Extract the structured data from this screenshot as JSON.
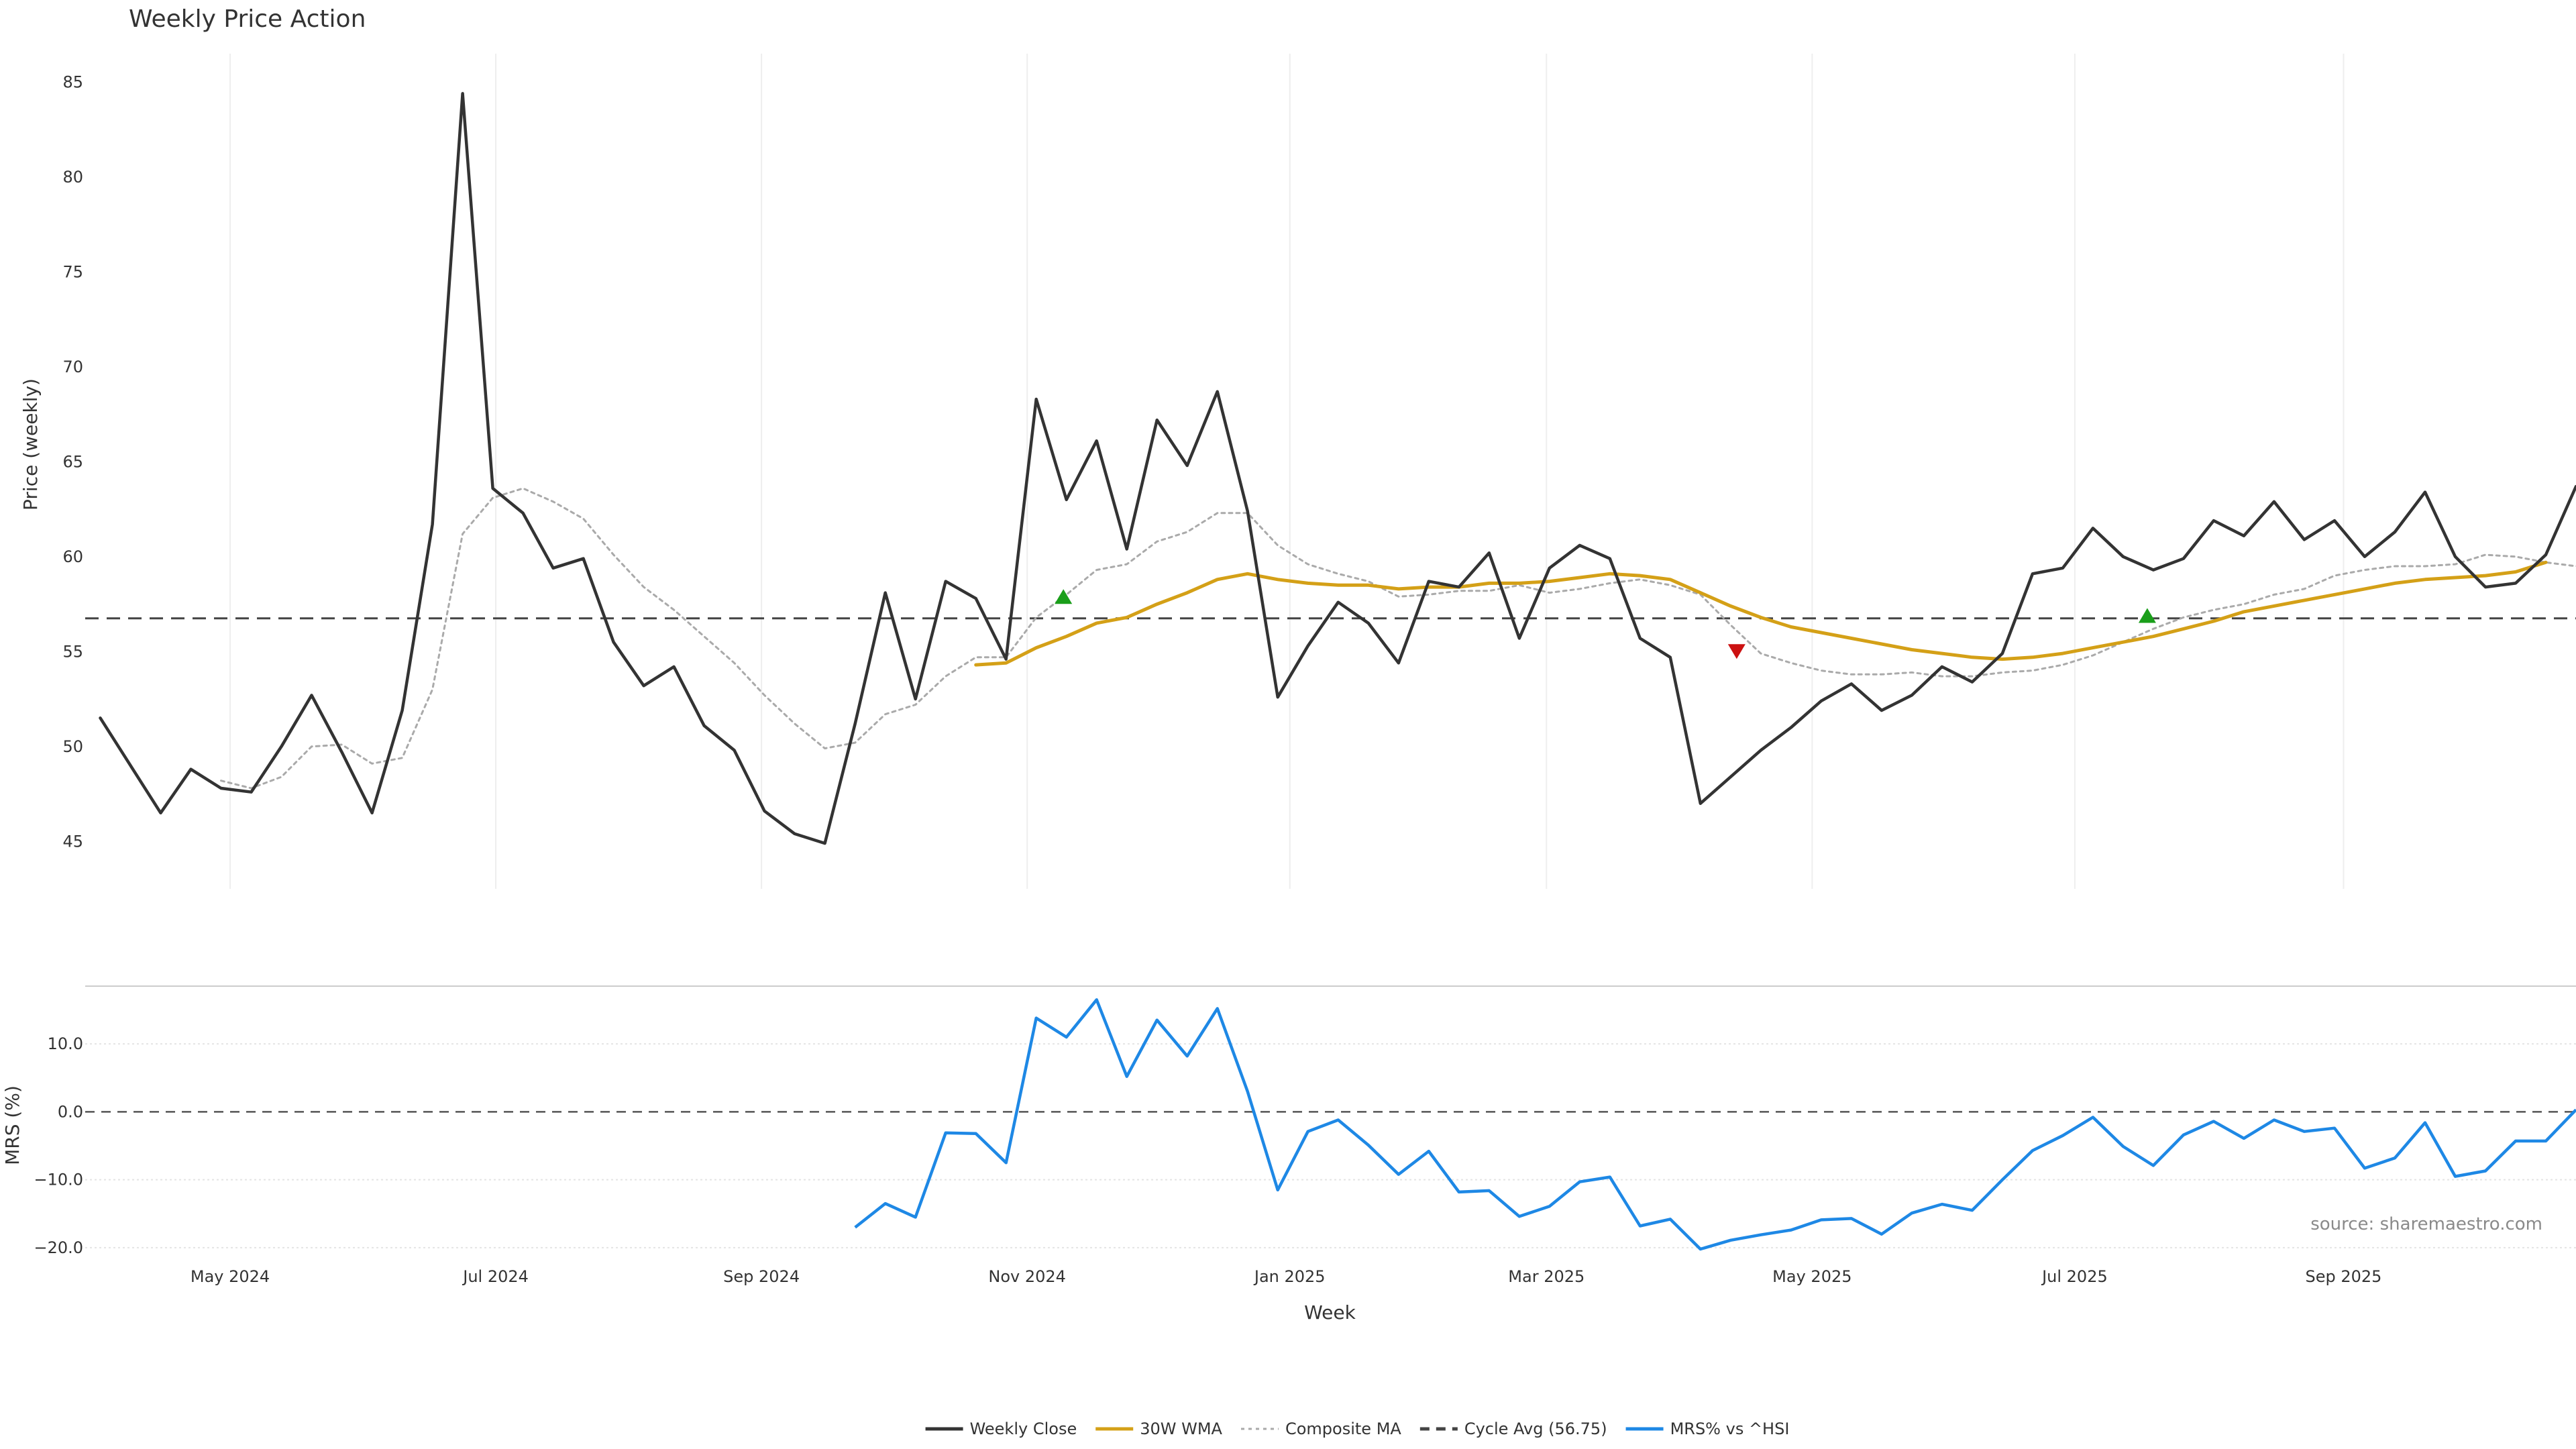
{
  "chart_data": {
    "type": "line",
    "title": "Weekly Price Action",
    "xlabel": "Week",
    "colors": {
      "weekly_close": "#333333",
      "wma": "#d4a017",
      "composite": "#aaaaaa",
      "cycle_avg": "#444444",
      "mrs": "#1e88e5",
      "buy_signal": "#1a9e1a",
      "sell_signal": "#cc1111",
      "grid": "#eeeeee"
    },
    "x_range": [
      -0.5,
      82
    ],
    "x_ticks": [
      {
        "x": 4.3,
        "label": "May 2024"
      },
      {
        "x": 13.1,
        "label": "Jul 2024"
      },
      {
        "x": 21.9,
        "label": "Sep 2024"
      },
      {
        "x": 30.7,
        "label": "Nov 2024"
      },
      {
        "x": 39.4,
        "label": "Jan 2025"
      },
      {
        "x": 47.9,
        "label": "Mar 2025"
      },
      {
        "x": 56.7,
        "label": "May 2025"
      },
      {
        "x": 65.4,
        "label": "Jul 2025"
      },
      {
        "x": 74.3,
        "label": "Sep 2025"
      }
    ],
    "price_panel": {
      "ylabel": "Price (weekly)",
      "ylim": [
        42.5,
        86.5
      ],
      "y_ticks": [
        45,
        50,
        55,
        60,
        65,
        70,
        75,
        80,
        85
      ],
      "cycle_avg": 56.75,
      "series": [
        {
          "name": "Weekly Close",
          "key": "weekly_close",
          "start": 0,
          "values": [
            51.5,
            49.0,
            46.5,
            48.8,
            47.8,
            47.6,
            50.0,
            52.7,
            49.7,
            46.5,
            51.9,
            61.7,
            84.4,
            63.6,
            62.3,
            59.4,
            59.9,
            55.5,
            53.2,
            54.2,
            51.1,
            49.8,
            46.6,
            45.4,
            44.9,
            51.2,
            58.1,
            52.5,
            58.7,
            57.8,
            54.6,
            68.3,
            63.0,
            66.1,
            60.4,
            67.2,
            64.8,
            68.7,
            62.4,
            52.6,
            55.3,
            57.6,
            56.5,
            54.4,
            58.7,
            58.4,
            60.2,
            55.7,
            59.4,
            60.6,
            59.9,
            55.7,
            54.7,
            47.0,
            48.4,
            49.8,
            51.0,
            52.4,
            53.3,
            51.9,
            52.7,
            54.2,
            53.4,
            54.9,
            59.1,
            59.4,
            61.5,
            60.0,
            59.3,
            59.9,
            61.9,
            61.1,
            62.9,
            60.9,
            61.9,
            60.0,
            61.3,
            63.4,
            60.0,
            58.4,
            58.6,
            60.1,
            63.7
          ]
        },
        {
          "name": "30W WMA",
          "key": "wma",
          "start": 29,
          "values": [
            54.3,
            54.4,
            55.2,
            55.8,
            56.5,
            56.8,
            57.5,
            58.1,
            58.8,
            59.1,
            58.8,
            58.6,
            58.5,
            58.5,
            58.3,
            58.4,
            58.4,
            58.6,
            58.6,
            58.7,
            58.9,
            59.1,
            59.0,
            58.8,
            58.1,
            57.4,
            56.8,
            56.3,
            56.0,
            55.7,
            55.4,
            55.1,
            54.9,
            54.7,
            54.6,
            54.7,
            54.9,
            55.2,
            55.5,
            55.8,
            56.2,
            56.6,
            57.1,
            57.4,
            57.7,
            58.0,
            58.3,
            58.6,
            58.8,
            58.9,
            59.0,
            59.2,
            59.7
          ]
        },
        {
          "name": "Composite MA",
          "key": "composite",
          "start": 4,
          "values": [
            48.2,
            47.8,
            48.4,
            50.0,
            50.1,
            49.1,
            49.4,
            53.0,
            61.2,
            63.1,
            63.6,
            62.9,
            62.0,
            60.1,
            58.4,
            57.2,
            55.8,
            54.4,
            52.7,
            51.2,
            49.9,
            50.2,
            51.7,
            52.2,
            53.7,
            54.7,
            54.7,
            56.8,
            58.0,
            59.3,
            59.6,
            60.8,
            61.3,
            62.3,
            62.3,
            60.6,
            59.6,
            59.1,
            58.7,
            57.9,
            58.0,
            58.2,
            58.2,
            58.5,
            58.1,
            58.3,
            58.6,
            58.8,
            58.5,
            58.0,
            56.4,
            54.9,
            54.4,
            54.0,
            53.8,
            53.8,
            53.9,
            53.7,
            53.7,
            53.9,
            54.0,
            54.3,
            54.8,
            55.5,
            56.2,
            56.8,
            57.2,
            57.5,
            58.0,
            58.3,
            59.0,
            59.3,
            59.5,
            59.5,
            59.6,
            60.1,
            60.0,
            59.7,
            59.5,
            59.6
          ]
        }
      ],
      "markers": [
        {
          "x": 31.9,
          "y": 57.9,
          "type": "buy"
        },
        {
          "x": 54.2,
          "y": 55.0,
          "type": "sell"
        },
        {
          "x": 67.8,
          "y": 56.9,
          "type": "buy"
        }
      ]
    },
    "mrs_panel": {
      "ylabel": "MRS (%)",
      "ylim": [
        -20.5,
        18.5
      ],
      "y_ticks": [
        -20,
        -10,
        0,
        10
      ],
      "y_tick_labels": [
        "−20.0",
        "−10.0",
        "0.0",
        "10.0"
      ],
      "zero_line": 0,
      "series": [
        {
          "name": "MRS% vs ^HSI",
          "key": "mrs",
          "start": 25,
          "values": [
            -17.0,
            -13.5,
            -15.5,
            -3.1,
            -3.2,
            -7.5,
            13.8,
            11.0,
            16.5,
            5.2,
            13.5,
            8.2,
            15.2,
            3.0,
            -11.5,
            -2.9,
            -1.2,
            -4.9,
            -9.2,
            -5.8,
            -11.8,
            -11.6,
            -15.4,
            -13.9,
            -10.3,
            -9.6,
            -16.8,
            -15.8,
            -20.2,
            -18.9,
            -18.1,
            -17.4,
            -15.9,
            -15.7,
            -18.0,
            -14.9,
            -13.6,
            -14.5,
            -10.0,
            -5.7,
            -3.5,
            -0.8,
            -5.1,
            -7.9,
            -3.4,
            -1.4,
            -3.9,
            -1.2,
            -2.9,
            -2.4,
            -8.3,
            -6.8,
            -1.6,
            -9.5,
            -8.7,
            -4.3,
            -4.3,
            0.3
          ]
        }
      ]
    },
    "legend": {
      "position": "bottom-center",
      "entries": [
        {
          "label": "Weekly Close",
          "key": "weekly_close",
          "style": "solid"
        },
        {
          "label": "30W WMA",
          "key": "wma",
          "style": "solid"
        },
        {
          "label": "Composite MA",
          "key": "composite",
          "style": "dotted"
        },
        {
          "label": "Cycle Avg (56.75)",
          "key": "cycle_avg",
          "style": "dashed"
        },
        {
          "label": "MRS% vs ^HSI",
          "key": "mrs",
          "style": "solid"
        }
      ]
    },
    "source": "source: sharemaestro.com"
  }
}
